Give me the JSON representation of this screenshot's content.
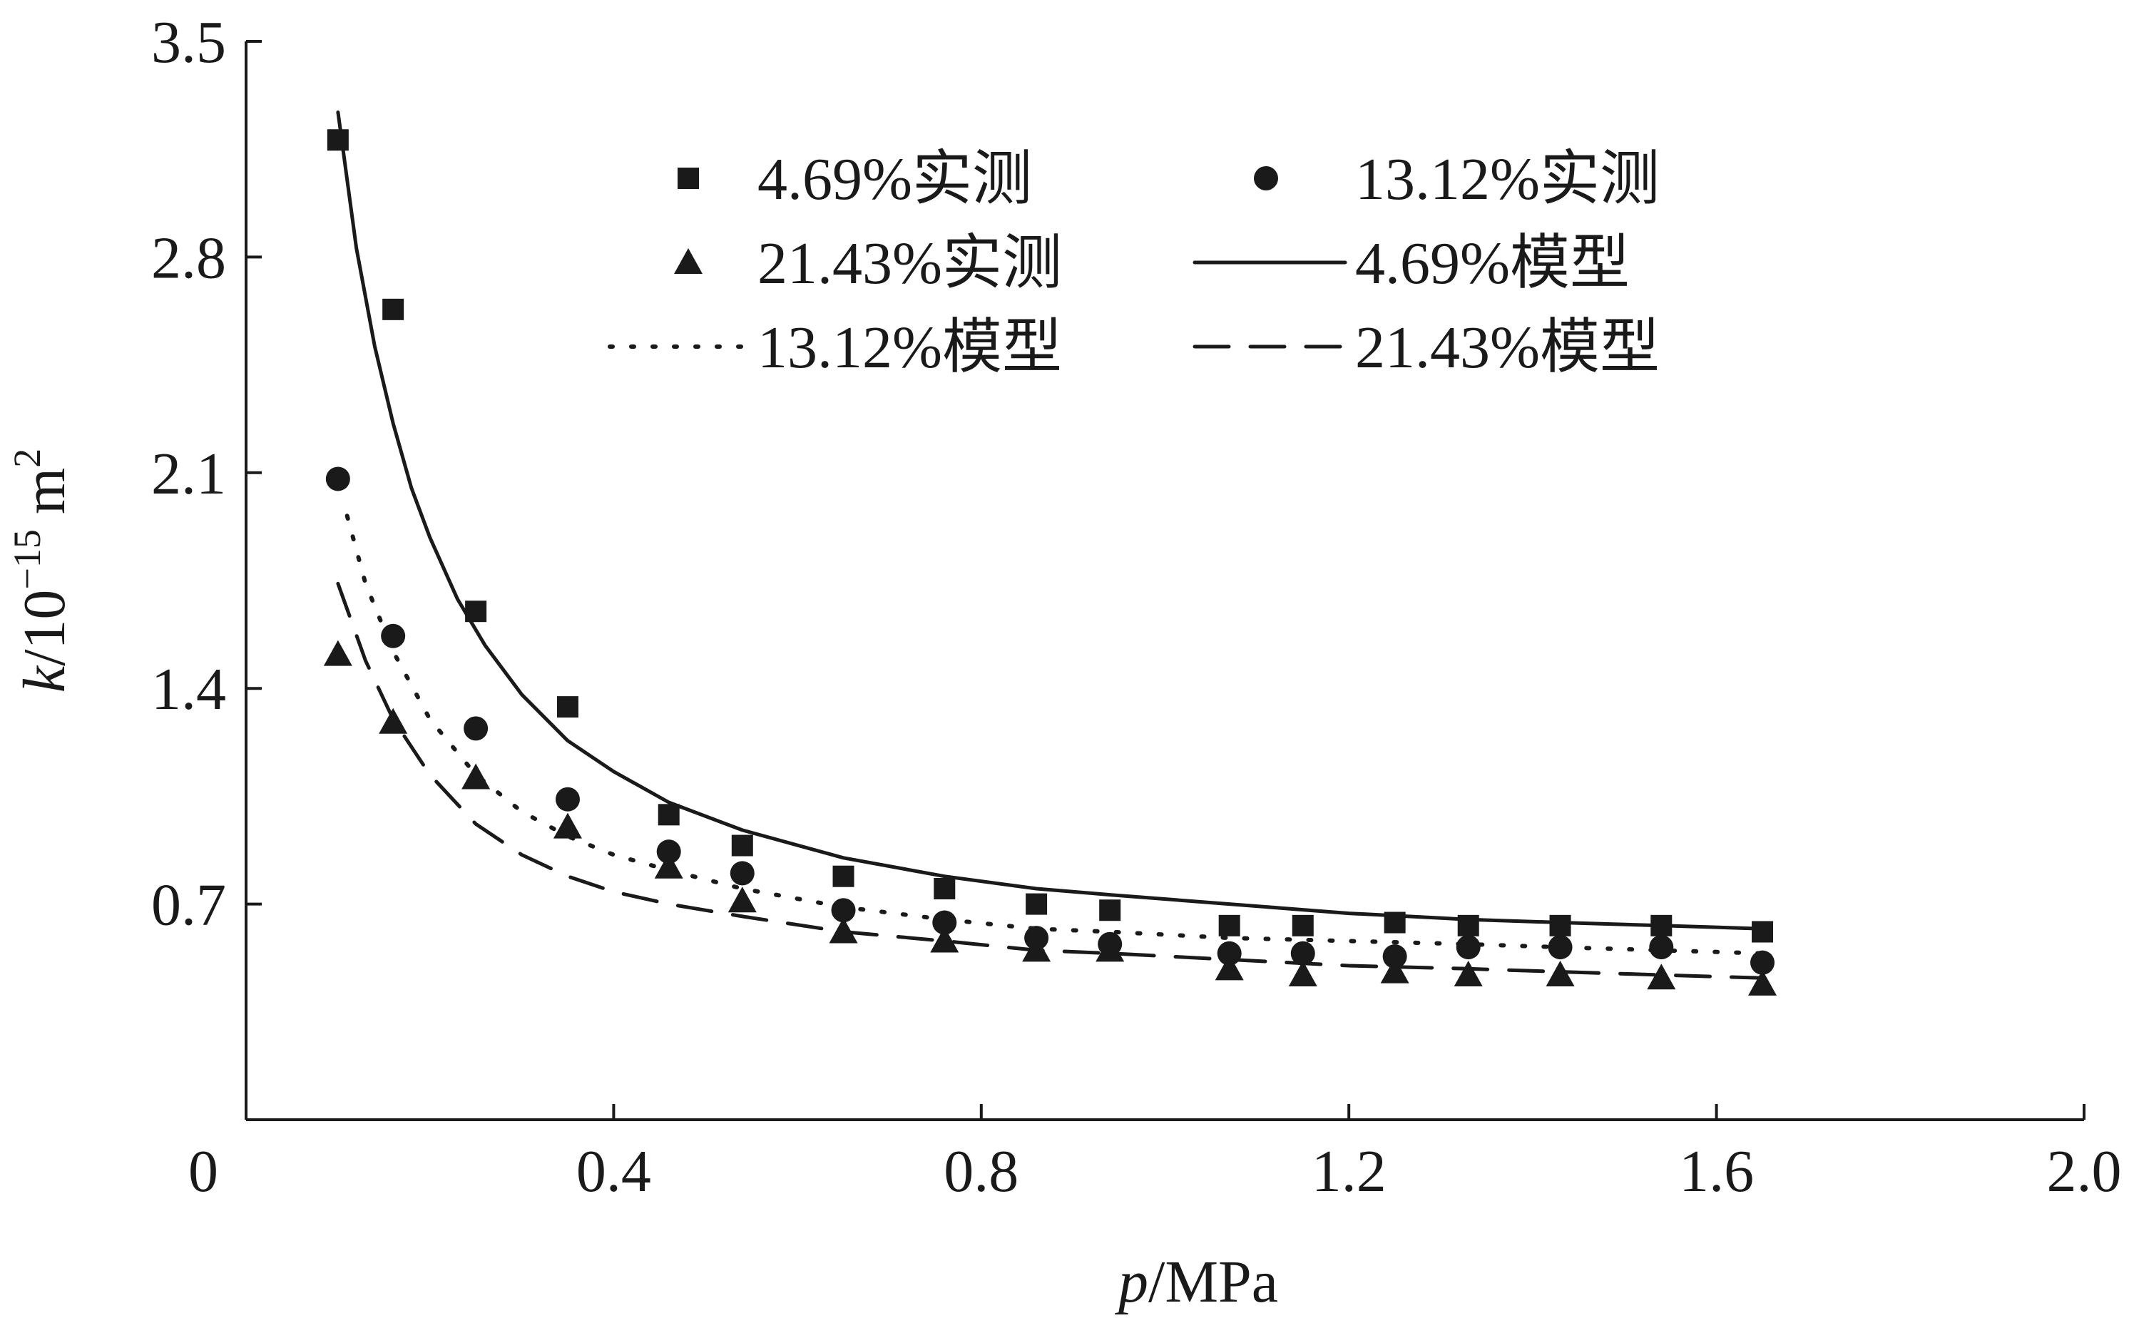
{
  "chart_data": {
    "type": "scatter",
    "x_label": {
      "var": "p",
      "unit": "/MPa"
    },
    "y_label": {
      "var": "k",
      "unit_prefix": "/10",
      "unit_exp": "−15",
      "unit_mid": " m",
      "unit_exp2": "2"
    },
    "xlim": [
      0,
      2.0
    ],
    "ylim": [
      0,
      3.5
    ],
    "x_ticks": [
      {
        "value": 0,
        "label": "0"
      },
      {
        "value": 0.4,
        "label": "0.4"
      },
      {
        "value": 0.8,
        "label": "0.8"
      },
      {
        "value": 1.2,
        "label": "1.2"
      },
      {
        "value": 1.6,
        "label": "1.6"
      },
      {
        "value": 2.0,
        "label": "2.0"
      }
    ],
    "y_ticks": [
      {
        "value": 0.7,
        "label": "0.7"
      },
      {
        "value": 1.4,
        "label": "1.4"
      },
      {
        "value": 2.1,
        "label": "2.1"
      },
      {
        "value": 2.8,
        "label": "2.8"
      },
      {
        "value": 3.5,
        "label": "3.5"
      }
    ],
    "grid": false,
    "legend_position": "top-right",
    "series": [
      {
        "name": "4.69%实测",
        "kind": "measured",
        "marker": "square",
        "x": [
          0.1,
          0.16,
          0.25,
          0.35,
          0.46,
          0.54,
          0.65,
          0.76,
          0.86,
          0.94,
          1.07,
          1.15,
          1.25,
          1.33,
          1.43,
          1.54,
          1.65
        ],
        "y": [
          3.18,
          2.63,
          1.65,
          1.34,
          0.99,
          0.89,
          0.79,
          0.75,
          0.7,
          0.68,
          0.63,
          0.63,
          0.64,
          0.63,
          0.63,
          0.63,
          0.61
        ]
      },
      {
        "name": "13.12%实测",
        "kind": "measured",
        "marker": "circle",
        "x": [
          0.1,
          0.16,
          0.25,
          0.35,
          0.46,
          0.54,
          0.65,
          0.76,
          0.86,
          0.94,
          1.07,
          1.15,
          1.25,
          1.33,
          1.43,
          1.54,
          1.65
        ],
        "y": [
          2.08,
          1.57,
          1.27,
          1.04,
          0.87,
          0.8,
          0.68,
          0.64,
          0.59,
          0.57,
          0.54,
          0.54,
          0.53,
          0.56,
          0.56,
          0.56,
          0.51
        ]
      },
      {
        "name": "21.43%实测",
        "kind": "measured",
        "marker": "triangle",
        "x": [
          0.1,
          0.16,
          0.25,
          0.35,
          0.46,
          0.54,
          0.65,
          0.76,
          0.86,
          0.94,
          1.07,
          1.15,
          1.25,
          1.33,
          1.43,
          1.54,
          1.65
        ],
        "y": [
          1.51,
          1.29,
          1.11,
          0.95,
          0.82,
          0.71,
          0.61,
          0.58,
          0.55,
          0.55,
          0.49,
          0.47,
          0.48,
          0.47,
          0.47,
          0.46,
          0.44
        ]
      },
      {
        "name": "4.69%模型",
        "kind": "model",
        "line_style": "solid",
        "x": [
          0.1,
          0.12,
          0.14,
          0.16,
          0.18,
          0.2,
          0.23,
          0.26,
          0.3,
          0.35,
          0.4,
          0.46,
          0.54,
          0.65,
          0.76,
          0.86,
          0.94,
          1.07,
          1.2,
          1.33,
          1.43,
          1.54,
          1.65
        ],
        "y": [
          3.27,
          2.83,
          2.51,
          2.26,
          2.05,
          1.89,
          1.69,
          1.54,
          1.38,
          1.23,
          1.13,
          1.03,
          0.94,
          0.85,
          0.79,
          0.75,
          0.73,
          0.7,
          0.67,
          0.65,
          0.64,
          0.63,
          0.62
        ]
      },
      {
        "name": "13.12%模型",
        "kind": "model",
        "line_style": "dotted",
        "x": [
          0.11,
          0.13,
          0.16,
          0.2,
          0.25,
          0.3,
          0.35,
          0.4,
          0.46,
          0.54,
          0.65,
          0.76,
          0.86,
          0.94,
          1.07,
          1.2,
          1.33,
          1.43,
          1.54,
          1.65
        ],
        "y": [
          1.96,
          1.74,
          1.52,
          1.3,
          1.12,
          1.0,
          0.92,
          0.86,
          0.81,
          0.75,
          0.69,
          0.65,
          0.62,
          0.61,
          0.59,
          0.58,
          0.57,
          0.56,
          0.55,
          0.54
        ]
      },
      {
        "name": "21.43%模型",
        "kind": "model",
        "line_style": "dashed",
        "x": [
          0.1,
          0.13,
          0.16,
          0.2,
          0.25,
          0.3,
          0.35,
          0.4,
          0.46,
          0.54,
          0.65,
          0.76,
          0.86,
          0.94,
          1.07,
          1.2,
          1.33,
          1.43,
          1.54,
          1.65
        ],
        "y": [
          1.74,
          1.49,
          1.3,
          1.12,
          0.96,
          0.86,
          0.79,
          0.74,
          0.7,
          0.66,
          0.61,
          0.58,
          0.55,
          0.54,
          0.52,
          0.5,
          0.49,
          0.48,
          0.47,
          0.46
        ]
      }
    ]
  }
}
